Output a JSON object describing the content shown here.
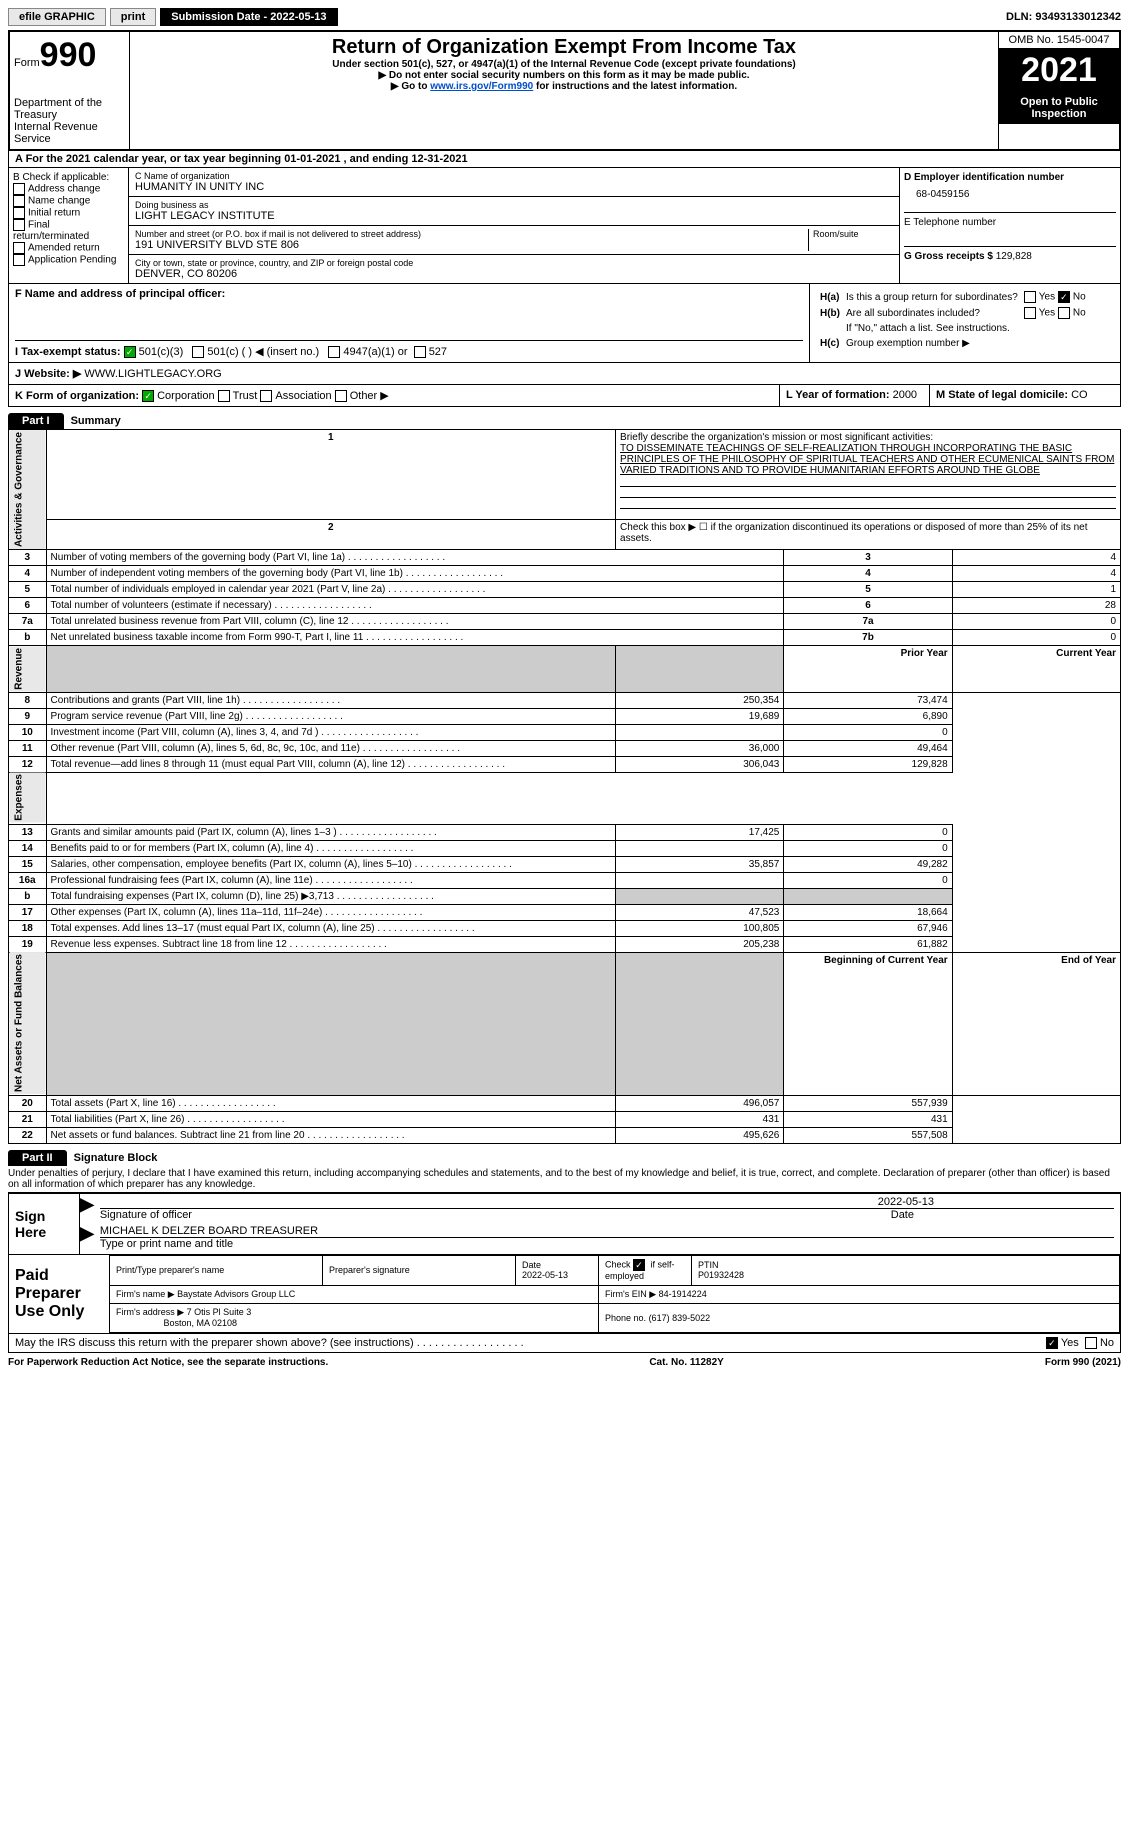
{
  "colors": {
    "black": "#000000",
    "white": "#ffffff",
    "grey_btn": "#e8e8e8",
    "grey_cell": "#cccccc",
    "link": "#004ecc",
    "check_green": "#00aa00"
  },
  "topbar": {
    "efile": "efile GRAPHIC",
    "print": "print",
    "submission": "Submission Date - 2022-05-13",
    "dln": "DLN: 93493133012342"
  },
  "header": {
    "form_label": "Form",
    "form_number": "990",
    "title": "Return of Organization Exempt From Income Tax",
    "subtitle": "Under section 501(c), 527, or 4947(a)(1) of the Internal Revenue Code (except private foundations)",
    "note1": "▶ Do not enter social security numbers on this form as it may be made public.",
    "note2_pre": "▶ Go to ",
    "note2_link": "www.irs.gov/Form990",
    "note2_post": " for instructions and the latest information.",
    "dept": "Department of the Treasury",
    "irs": "Internal Revenue Service",
    "omb": "OMB No. 1545-0047",
    "year": "2021",
    "open": "Open to Public Inspection"
  },
  "rowA": "A For the 2021 calendar year, or tax year beginning 01-01-2021    , and ending 12-31-2021",
  "colB": {
    "label": "B Check if applicable:",
    "opts": [
      "Address change",
      "Name change",
      "Initial return",
      "Final return/terminated",
      "Amended return",
      "Application Pending"
    ]
  },
  "colC": {
    "name_lbl": "C Name of organization",
    "name": "HUMANITY IN UNITY INC",
    "dba_lbl": "Doing business as",
    "dba": "LIGHT LEGACY INSTITUTE",
    "addr_lbl": "Number and street (or P.O. box if mail is not delivered to street address)",
    "room_lbl": "Room/suite",
    "addr": "191 UNIVERSITY BLVD STE 806",
    "city_lbl": "City or town, state or province, country, and ZIP or foreign postal code",
    "city": "DENVER, CO  80206"
  },
  "colD": {
    "ein_lbl": "D Employer identification number",
    "ein": "68-0459156",
    "tel_lbl": "E Telephone number",
    "gross_lbl": "G Gross receipts $",
    "gross": "129,828"
  },
  "rowF": {
    "f_lbl": "F  Name and address of principal officer:",
    "ha": "H(a)  Is this a group return for subordinates?",
    "hb": "H(b)  Are all subordinates included?",
    "hb_note": "If \"No,\" attach a list. See instructions.",
    "hc": "H(c)  Group exemption number ▶",
    "yes": "Yes",
    "no": "No"
  },
  "rowI": {
    "label": "I    Tax-exempt status:",
    "o1": "501(c)(3)",
    "o2": "501(c) (   ) ◀ (insert no.)",
    "o3": "4947(a)(1) or",
    "o4": "527"
  },
  "rowJ": {
    "label": "J   Website: ▶",
    "val": "WWW.LIGHTLEGACY.ORG"
  },
  "rowK": {
    "label": "K Form of organization:",
    "opts": [
      "Corporation",
      "Trust",
      "Association",
      "Other ▶"
    ],
    "year_lbl": "L Year of formation:",
    "year": "2000",
    "state_lbl": "M State of legal domicile:",
    "state": "CO"
  },
  "part1": {
    "hdr": "Part I",
    "title": "Summary",
    "line1_lbl": "Briefly describe the organization's mission or most significant activities:",
    "line1_val": "TO DISSEMINATE TEACHINGS OF SELF-REALIZATION THROUGH INCORPORATING THE BASIC PRINCIPLES OF THE PHILOSOPHY OF SPIRITUAL TEACHERS AND OTHER ECUMENICAL SAINTS FROM VARIED TRADITIONS AND TO PROVIDE HUMANITARIAN EFFORTS AROUND THE GLOBE",
    "line2": "Check this box ▶ ☐ if the organization discontinued its operations or disposed of more than 25% of its net assets.",
    "prior_hdr": "Prior Year",
    "curr_hdr": "Current Year",
    "beg_hdr": "Beginning of Current Year",
    "end_hdr": "End of Year",
    "sec_ag": "Activities & Governance",
    "sec_rev": "Revenue",
    "sec_exp": "Expenses",
    "sec_net": "Net Assets or Fund Balances",
    "lines_top": [
      {
        "n": "3",
        "t": "Number of voting members of the governing body (Part VI, line 1a)",
        "box": "3",
        "v": "4"
      },
      {
        "n": "4",
        "t": "Number of independent voting members of the governing body (Part VI, line 1b)",
        "box": "4",
        "v": "4"
      },
      {
        "n": "5",
        "t": "Total number of individuals employed in calendar year 2021 (Part V, line 2a)",
        "box": "5",
        "v": "1"
      },
      {
        "n": "6",
        "t": "Total number of volunteers (estimate if necessary)",
        "box": "6",
        "v": "28"
      },
      {
        "n": "7a",
        "t": "Total unrelated business revenue from Part VIII, column (C), line 12",
        "box": "7a",
        "v": "0"
      },
      {
        "n": "b",
        "t": "Net unrelated business taxable income from Form 990-T, Part I, line 11",
        "box": "7b",
        "v": "0"
      }
    ],
    "lines_rev": [
      {
        "n": "8",
        "t": "Contributions and grants (Part VIII, line 1h)",
        "p": "250,354",
        "c": "73,474"
      },
      {
        "n": "9",
        "t": "Program service revenue (Part VIII, line 2g)",
        "p": "19,689",
        "c": "6,890"
      },
      {
        "n": "10",
        "t": "Investment income (Part VIII, column (A), lines 3, 4, and 7d )",
        "p": "",
        "c": "0"
      },
      {
        "n": "11",
        "t": "Other revenue (Part VIII, column (A), lines 5, 6d, 8c, 9c, 10c, and 11e)",
        "p": "36,000",
        "c": "49,464"
      },
      {
        "n": "12",
        "t": "Total revenue—add lines 8 through 11 (must equal Part VIII, column (A), line 12)",
        "p": "306,043",
        "c": "129,828"
      }
    ],
    "lines_exp": [
      {
        "n": "13",
        "t": "Grants and similar amounts paid (Part IX, column (A), lines 1–3 )",
        "p": "17,425",
        "c": "0"
      },
      {
        "n": "14",
        "t": "Benefits paid to or for members (Part IX, column (A), line 4)",
        "p": "",
        "c": "0"
      },
      {
        "n": "15",
        "t": "Salaries, other compensation, employee benefits (Part IX, column (A), lines 5–10)",
        "p": "35,857",
        "c": "49,282"
      },
      {
        "n": "16a",
        "t": "Professional fundraising fees (Part IX, column (A), line 11e)",
        "p": "",
        "c": "0"
      },
      {
        "n": "b",
        "t": "Total fundraising expenses (Part IX, column (D), line 25) ▶3,713",
        "p": "grey",
        "c": "grey"
      },
      {
        "n": "17",
        "t": "Other expenses (Part IX, column (A), lines 11a–11d, 11f–24e)",
        "p": "47,523",
        "c": "18,664"
      },
      {
        "n": "18",
        "t": "Total expenses. Add lines 13–17 (must equal Part IX, column (A), line 25)",
        "p": "100,805",
        "c": "67,946"
      },
      {
        "n": "19",
        "t": "Revenue less expenses. Subtract line 18 from line 12",
        "p": "205,238",
        "c": "61,882"
      }
    ],
    "lines_net": [
      {
        "n": "20",
        "t": "Total assets (Part X, line 16)",
        "p": "496,057",
        "c": "557,939"
      },
      {
        "n": "21",
        "t": "Total liabilities (Part X, line 26)",
        "p": "431",
        "c": "431"
      },
      {
        "n": "22",
        "t": "Net assets or fund balances. Subtract line 21 from line 20",
        "p": "495,626",
        "c": "557,508"
      }
    ]
  },
  "part2": {
    "hdr": "Part II",
    "title": "Signature Block",
    "decl": "Under penalties of perjury, I declare that I have examined this return, including accompanying schedules and statements, and to the best of my knowledge and belief, it is true, correct, and complete. Declaration of preparer (other than officer) is based on all information of which preparer has any knowledge.",
    "sign_here": "Sign Here",
    "sig_of_officer": "Signature of officer",
    "sig_date": "2022-05-13",
    "date_lbl": "Date",
    "officer_name": "MICHAEL K DELZER  BOARD TREASURER",
    "type_name": "Type or print name and title",
    "paid_prep": "Paid Preparer Use Only",
    "prep_print": "Print/Type preparer's name",
    "prep_sig": "Preparer's signature",
    "prep_date_lbl": "Date",
    "prep_date": "2022-05-13",
    "prep_check": "Check ☑ if self-employed",
    "ptin_lbl": "PTIN",
    "ptin": "P01932428",
    "firm_name_lbl": "Firm's name     ▶",
    "firm_name": "Baystate Advisors Group LLC",
    "firm_ein_lbl": "Firm's EIN ▶",
    "firm_ein": "84-1914224",
    "firm_addr_lbl": "Firm's address ▶",
    "firm_addr": "7 Otis Pl Suite 3",
    "firm_city": "Boston, MA  02108",
    "phone_lbl": "Phone no.",
    "phone": "(617) 839-5022",
    "may_irs": "May the IRS discuss this return with the preparer shown above? (see instructions)",
    "yes": "Yes",
    "no": "No"
  },
  "footer": {
    "left": "For Paperwork Reduction Act Notice, see the separate instructions.",
    "mid": "Cat. No. 11282Y",
    "right": "Form 990 (2021)"
  }
}
